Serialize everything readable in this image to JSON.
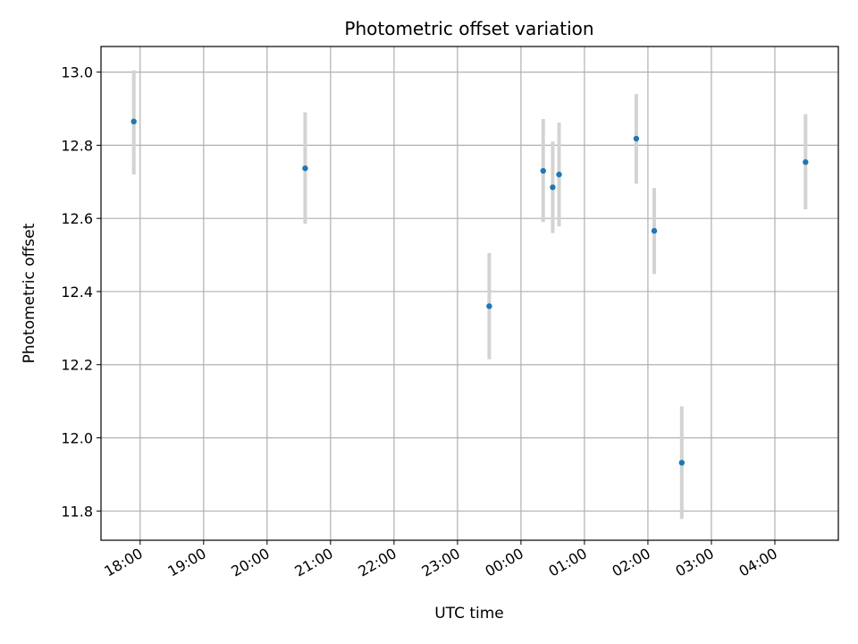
{
  "chart_data": {
    "type": "scatter",
    "title": "Photometric offset variation",
    "xlabel": "UTC time",
    "ylabel": "Photometric offset",
    "x_ticks": [
      "18:00",
      "19:00",
      "20:00",
      "21:00",
      "22:00",
      "23:00",
      "00:00",
      "01:00",
      "02:00",
      "03:00",
      "04:00"
    ],
    "x_range": [
      "17:23",
      "05:00"
    ],
    "y_ticks": [
      11.8,
      12.0,
      12.2,
      12.4,
      12.6,
      12.8,
      13.0
    ],
    "ylim": [
      11.72,
      13.07
    ],
    "grid": true,
    "points": [
      {
        "time": "17:54",
        "y": 12.865,
        "yerr_low": 12.72,
        "yerr_high": 13.005
      },
      {
        "time": "20:36",
        "y": 12.737,
        "yerr_low": 12.585,
        "yerr_high": 12.89
      },
      {
        "time": "23:30",
        "y": 12.36,
        "yerr_low": 12.215,
        "yerr_high": 12.505
      },
      {
        "time": "00:21",
        "y": 12.73,
        "yerr_low": 12.59,
        "yerr_high": 12.872
      },
      {
        "time": "00:30",
        "y": 12.685,
        "yerr_low": 12.56,
        "yerr_high": 12.81
      },
      {
        "time": "00:36",
        "y": 12.72,
        "yerr_low": 12.578,
        "yerr_high": 12.862
      },
      {
        "time": "01:49",
        "y": 12.818,
        "yerr_low": 12.695,
        "yerr_high": 12.94
      },
      {
        "time": "02:06",
        "y": 12.566,
        "yerr_low": 12.448,
        "yerr_high": 12.683
      },
      {
        "time": "02:32",
        "y": 11.932,
        "yerr_low": 11.778,
        "yerr_high": 12.086
      },
      {
        "time": "04:29",
        "y": 12.754,
        "yerr_low": 12.625,
        "yerr_high": 12.885
      }
    ],
    "colors": {
      "points": "#1f77b4",
      "error_bars": "#d3d3d3",
      "grid": "#b0b0b0"
    }
  }
}
